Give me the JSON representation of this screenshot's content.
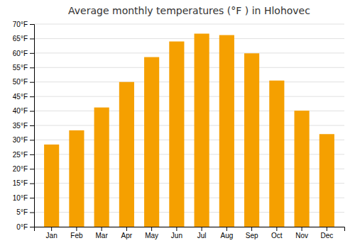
{
  "chart_data": {
    "type": "bar",
    "title": "Average monthly temperatures (°F ) in Hlohovec",
    "categories": [
      "Jan",
      "Feb",
      "Mar",
      "Apr",
      "May",
      "Jun",
      "Jul",
      "Aug",
      "Sep",
      "Oct",
      "Nov",
      "Dec"
    ],
    "values": [
      28.4,
      33.3,
      41.2,
      50.0,
      58.6,
      64.0,
      66.7,
      66.2,
      59.9,
      50.5,
      40.1,
      32.0
    ],
    "color": "#f5a000",
    "ylim": [
      0,
      70
    ],
    "yticks": [
      {
        "value": 0,
        "label": "0°F"
      },
      {
        "value": 5,
        "label": "5°F"
      },
      {
        "value": 10,
        "label": "10°F"
      },
      {
        "value": 15,
        "label": "15°F"
      },
      {
        "value": 20,
        "label": "20°F"
      },
      {
        "value": 25,
        "label": "25°F"
      },
      {
        "value": 30,
        "label": "30°F"
      },
      {
        "value": 35,
        "label": "35°F"
      },
      {
        "value": 40,
        "label": "40°F"
      },
      {
        "value": 45,
        "label": "45°F"
      },
      {
        "value": 50,
        "label": "50°F"
      },
      {
        "value": 55,
        "label": "55°F"
      },
      {
        "value": 60,
        "label": "60°F"
      },
      {
        "value": 65,
        "label": "65°F"
      },
      {
        "value": 70,
        "label": "70°F"
      }
    ],
    "grid": true
  }
}
